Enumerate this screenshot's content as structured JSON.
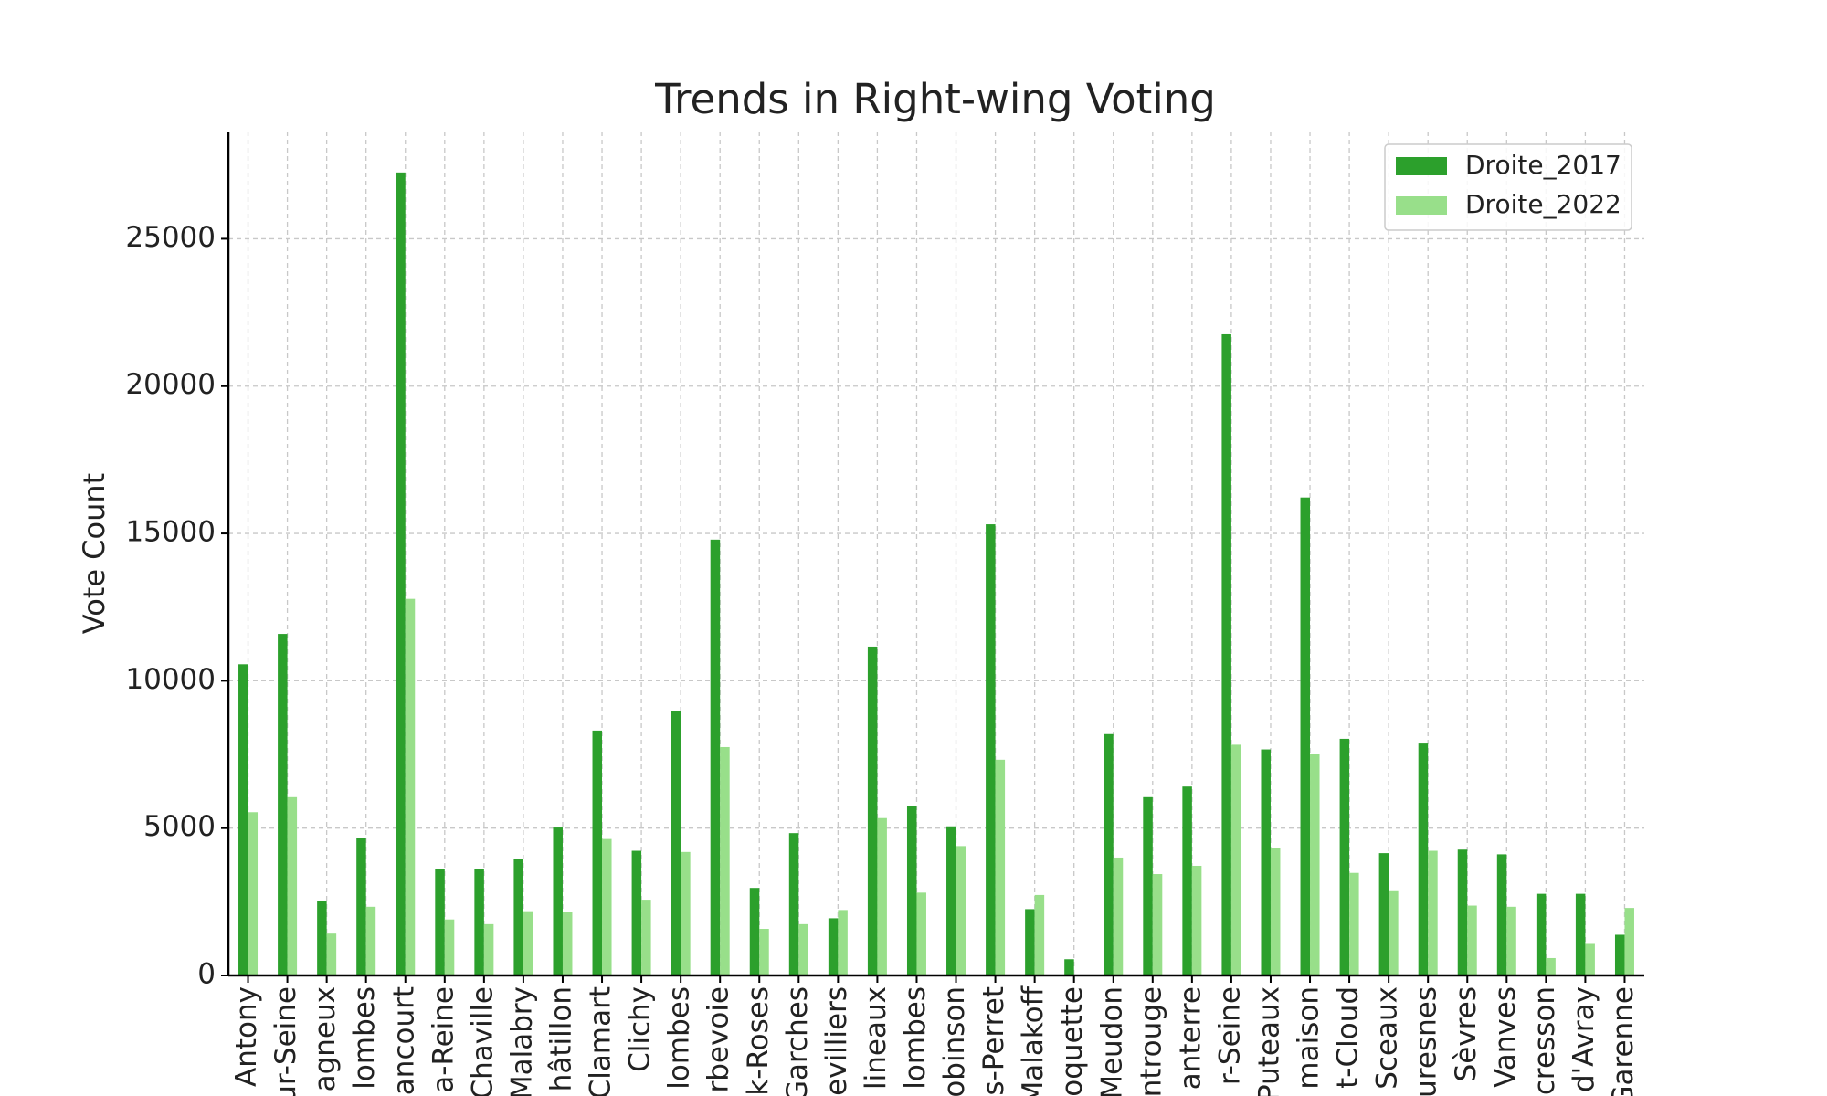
{
  "chart_data": {
    "type": "bar",
    "title": "Trends in Right-wing Voting",
    "y_label": "Vote Count",
    "categories": [
      "Antony",
      "ur-Seine",
      "agneux",
      "lombes",
      "ancourt",
      "a-Reine",
      "Chaville",
      "Malabry",
      "hâtillon",
      "Clamart",
      "Clichy",
      "lombes",
      "rbevoie",
      "k-Roses",
      "Garches",
      "evilliers",
      "lineaux",
      "lombes",
      "obinson",
      "s-Perret",
      "Malakoff",
      "oquette",
      "Meudon",
      "ntrouge",
      "anterre",
      "r-Seine",
      "Puteaux",
      "maison",
      "t-Cloud",
      "Sceaux",
      "uresnes",
      "Sèvres",
      "Vanves",
      "cresson",
      "d'Avray",
      "Garenne"
    ],
    "series": [
      {
        "name": "Droite_2017",
        "color": "#2ca02c",
        "values": [
          10560,
          11590,
          2530,
          4670,
          27250,
          3600,
          3600,
          3960,
          5020,
          8310,
          4230,
          8980,
          14790,
          2970,
          4830,
          1940,
          11160,
          5740,
          5060,
          15310,
          2250,
          550,
          8190,
          6050,
          6410,
          21760,
          7670,
          16220,
          8030,
          4150,
          7870,
          4270,
          4110,
          2770,
          2770,
          1380
        ]
      },
      {
        "name": "Droite_2022",
        "color": "#98df8a",
        "values": [
          5540,
          6050,
          1420,
          2330,
          12780,
          1900,
          1740,
          2180,
          2140,
          4630,
          2570,
          4190,
          7750,
          1580,
          1740,
          2220,
          5340,
          2810,
          4390,
          7320,
          2730,
          0,
          4000,
          3440,
          3720,
          7830,
          4310,
          7520,
          3480,
          2890,
          4230,
          2370,
          2330,
          590,
          1070,
          2290
        ]
      }
    ],
    "ylim": [
      0,
      28640
    ],
    "yticks": [
      0,
      5000,
      10000,
      15000,
      20000,
      25000
    ],
    "grid": true,
    "legend": "upper right"
  }
}
